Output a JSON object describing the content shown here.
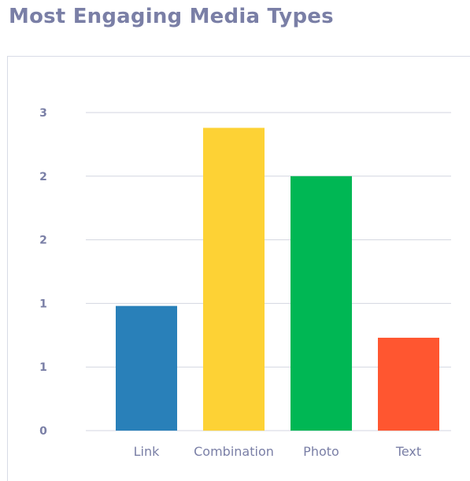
{
  "chart_data": {
    "type": "bar",
    "title": "Most Engaging Media Types",
    "categories": [
      "Link",
      "Combination",
      "Photo",
      "Text"
    ],
    "values": [
      0.98,
      2.38,
      2.0,
      0.73
    ],
    "colors": [
      "#2980b9",
      "#fdd235",
      "#00b754",
      "#ff5630"
    ],
    "ylim": [
      0,
      2.5
    ],
    "y_ticks": [
      0,
      0.5,
      1.0,
      1.5,
      2.0,
      2.5
    ],
    "y_tick_labels": [
      "0",
      "1",
      "1",
      "2",
      "2",
      "3"
    ],
    "xlabel": "",
    "ylabel": "",
    "grid": true,
    "legend": "none"
  }
}
